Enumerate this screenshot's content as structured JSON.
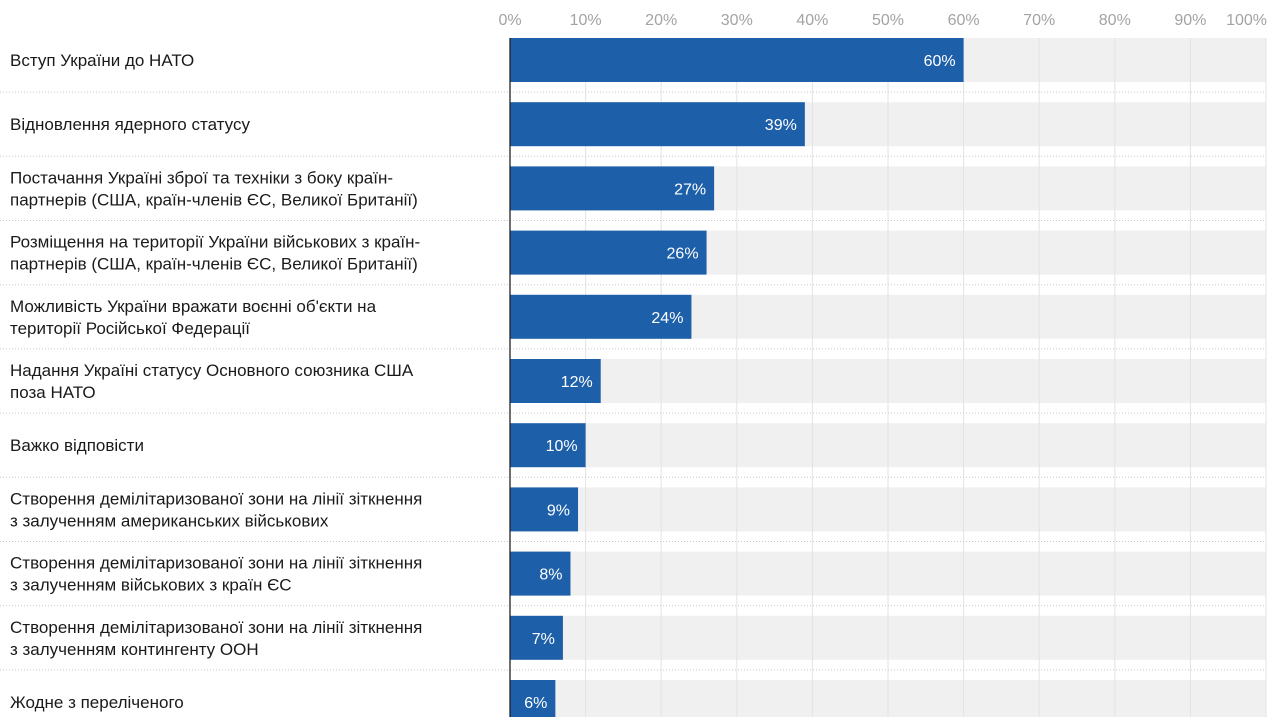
{
  "chart_data": {
    "type": "bar",
    "orientation": "horizontal",
    "categories": [
      [
        "Вступ України до НАТО"
      ],
      [
        "Відновлення ядерного статусу"
      ],
      [
        "Постачання Україні зброї та техніки з боку країн-",
        "партнерів (США, країн-членів ЄС, Великої Британії)"
      ],
      [
        "Розміщення на території України військових з країн-",
        "партнерів (США, країн-членів ЄС, Великої Британії)"
      ],
      [
        "Можливість України вражати воєнні об'єкти на",
        "території Російської Федерації"
      ],
      [
        "Надання Україні статусу Основного союзника США",
        "поза НАТО"
      ],
      [
        "Важко відповісти"
      ],
      [
        "Створення демілітаризованої зони на лінії зіткнення",
        "з залученням американських військових"
      ],
      [
        "Створення демілітаризованої зони на лінії зіткнення",
        "з залученням військових з країн ЄС"
      ],
      [
        "Створення демілітаризованої зони на лінії зіткнення",
        "з залученням контингенту ООН"
      ],
      [
        "Жодне з переліченого"
      ]
    ],
    "values": [
      60,
      39,
      27,
      26,
      24,
      12,
      10,
      9,
      8,
      7,
      6
    ],
    "value_labels": [
      "60%",
      "39%",
      "27%",
      "26%",
      "24%",
      "12%",
      "10%",
      "9%",
      "8%",
      "7%",
      "6%"
    ],
    "xlim": [
      0,
      100
    ],
    "x_ticks": [
      0,
      10,
      20,
      30,
      40,
      50,
      60,
      70,
      80,
      90,
      100
    ],
    "x_tick_labels": [
      "0%",
      "10%",
      "20%",
      "30%",
      "40%",
      "50%",
      "60%",
      "70%",
      "80%",
      "90%",
      "100%"
    ],
    "x_axis_position": "top",
    "grid": true,
    "legend": "none",
    "title": "",
    "xlabel": "",
    "ylabel": "",
    "colors": {
      "bar": "#1d5fa8",
      "track": "#f0f0f0",
      "grid": "#e3e3e3",
      "separator": "#c9c9c9",
      "tick_text": "#a3a3a3",
      "label_text": "#1a1a1a",
      "value_text": "#ffffff"
    }
  }
}
